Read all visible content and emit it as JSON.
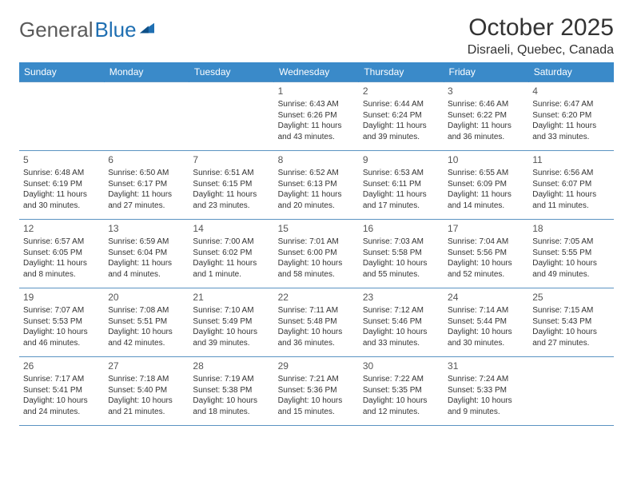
{
  "logo": {
    "part1": "General",
    "part2": "Blue"
  },
  "title": "October 2025",
  "location": "Disraeli, Quebec, Canada",
  "colors": {
    "header_bg": "#3a8ac9",
    "header_text": "#ffffff",
    "row_border": "#5b93c2",
    "text": "#333333",
    "logo_gray": "#5a5a5a",
    "logo_blue": "#1f6fb2",
    "page_bg": "#ffffff"
  },
  "typography": {
    "title_fontsize": 30,
    "location_fontsize": 16,
    "header_fontsize": 12,
    "cell_fontsize": 10,
    "daynum_fontsize": 12
  },
  "weekdays": [
    "Sunday",
    "Monday",
    "Tuesday",
    "Wednesday",
    "Thursday",
    "Friday",
    "Saturday"
  ],
  "layout": {
    "columns": 7,
    "rows": 5,
    "col_width_pct": 14.2857
  },
  "weeks": [
    [
      null,
      null,
      null,
      {
        "day": "1",
        "sunrise": "Sunrise: 6:43 AM",
        "sunset": "Sunset: 6:26 PM",
        "dl1": "Daylight: 11 hours",
        "dl2": "and 43 minutes."
      },
      {
        "day": "2",
        "sunrise": "Sunrise: 6:44 AM",
        "sunset": "Sunset: 6:24 PM",
        "dl1": "Daylight: 11 hours",
        "dl2": "and 39 minutes."
      },
      {
        "day": "3",
        "sunrise": "Sunrise: 6:46 AM",
        "sunset": "Sunset: 6:22 PM",
        "dl1": "Daylight: 11 hours",
        "dl2": "and 36 minutes."
      },
      {
        "day": "4",
        "sunrise": "Sunrise: 6:47 AM",
        "sunset": "Sunset: 6:20 PM",
        "dl1": "Daylight: 11 hours",
        "dl2": "and 33 minutes."
      }
    ],
    [
      {
        "day": "5",
        "sunrise": "Sunrise: 6:48 AM",
        "sunset": "Sunset: 6:19 PM",
        "dl1": "Daylight: 11 hours",
        "dl2": "and 30 minutes."
      },
      {
        "day": "6",
        "sunrise": "Sunrise: 6:50 AM",
        "sunset": "Sunset: 6:17 PM",
        "dl1": "Daylight: 11 hours",
        "dl2": "and 27 minutes."
      },
      {
        "day": "7",
        "sunrise": "Sunrise: 6:51 AM",
        "sunset": "Sunset: 6:15 PM",
        "dl1": "Daylight: 11 hours",
        "dl2": "and 23 minutes."
      },
      {
        "day": "8",
        "sunrise": "Sunrise: 6:52 AM",
        "sunset": "Sunset: 6:13 PM",
        "dl1": "Daylight: 11 hours",
        "dl2": "and 20 minutes."
      },
      {
        "day": "9",
        "sunrise": "Sunrise: 6:53 AM",
        "sunset": "Sunset: 6:11 PM",
        "dl1": "Daylight: 11 hours",
        "dl2": "and 17 minutes."
      },
      {
        "day": "10",
        "sunrise": "Sunrise: 6:55 AM",
        "sunset": "Sunset: 6:09 PM",
        "dl1": "Daylight: 11 hours",
        "dl2": "and 14 minutes."
      },
      {
        "day": "11",
        "sunrise": "Sunrise: 6:56 AM",
        "sunset": "Sunset: 6:07 PM",
        "dl1": "Daylight: 11 hours",
        "dl2": "and 11 minutes."
      }
    ],
    [
      {
        "day": "12",
        "sunrise": "Sunrise: 6:57 AM",
        "sunset": "Sunset: 6:05 PM",
        "dl1": "Daylight: 11 hours",
        "dl2": "and 8 minutes."
      },
      {
        "day": "13",
        "sunrise": "Sunrise: 6:59 AM",
        "sunset": "Sunset: 6:04 PM",
        "dl1": "Daylight: 11 hours",
        "dl2": "and 4 minutes."
      },
      {
        "day": "14",
        "sunrise": "Sunrise: 7:00 AM",
        "sunset": "Sunset: 6:02 PM",
        "dl1": "Daylight: 11 hours",
        "dl2": "and 1 minute."
      },
      {
        "day": "15",
        "sunrise": "Sunrise: 7:01 AM",
        "sunset": "Sunset: 6:00 PM",
        "dl1": "Daylight: 10 hours",
        "dl2": "and 58 minutes."
      },
      {
        "day": "16",
        "sunrise": "Sunrise: 7:03 AM",
        "sunset": "Sunset: 5:58 PM",
        "dl1": "Daylight: 10 hours",
        "dl2": "and 55 minutes."
      },
      {
        "day": "17",
        "sunrise": "Sunrise: 7:04 AM",
        "sunset": "Sunset: 5:56 PM",
        "dl1": "Daylight: 10 hours",
        "dl2": "and 52 minutes."
      },
      {
        "day": "18",
        "sunrise": "Sunrise: 7:05 AM",
        "sunset": "Sunset: 5:55 PM",
        "dl1": "Daylight: 10 hours",
        "dl2": "and 49 minutes."
      }
    ],
    [
      {
        "day": "19",
        "sunrise": "Sunrise: 7:07 AM",
        "sunset": "Sunset: 5:53 PM",
        "dl1": "Daylight: 10 hours",
        "dl2": "and 46 minutes."
      },
      {
        "day": "20",
        "sunrise": "Sunrise: 7:08 AM",
        "sunset": "Sunset: 5:51 PM",
        "dl1": "Daylight: 10 hours",
        "dl2": "and 42 minutes."
      },
      {
        "day": "21",
        "sunrise": "Sunrise: 7:10 AM",
        "sunset": "Sunset: 5:49 PM",
        "dl1": "Daylight: 10 hours",
        "dl2": "and 39 minutes."
      },
      {
        "day": "22",
        "sunrise": "Sunrise: 7:11 AM",
        "sunset": "Sunset: 5:48 PM",
        "dl1": "Daylight: 10 hours",
        "dl2": "and 36 minutes."
      },
      {
        "day": "23",
        "sunrise": "Sunrise: 7:12 AM",
        "sunset": "Sunset: 5:46 PM",
        "dl1": "Daylight: 10 hours",
        "dl2": "and 33 minutes."
      },
      {
        "day": "24",
        "sunrise": "Sunrise: 7:14 AM",
        "sunset": "Sunset: 5:44 PM",
        "dl1": "Daylight: 10 hours",
        "dl2": "and 30 minutes."
      },
      {
        "day": "25",
        "sunrise": "Sunrise: 7:15 AM",
        "sunset": "Sunset: 5:43 PM",
        "dl1": "Daylight: 10 hours",
        "dl2": "and 27 minutes."
      }
    ],
    [
      {
        "day": "26",
        "sunrise": "Sunrise: 7:17 AM",
        "sunset": "Sunset: 5:41 PM",
        "dl1": "Daylight: 10 hours",
        "dl2": "and 24 minutes."
      },
      {
        "day": "27",
        "sunrise": "Sunrise: 7:18 AM",
        "sunset": "Sunset: 5:40 PM",
        "dl1": "Daylight: 10 hours",
        "dl2": "and 21 minutes."
      },
      {
        "day": "28",
        "sunrise": "Sunrise: 7:19 AM",
        "sunset": "Sunset: 5:38 PM",
        "dl1": "Daylight: 10 hours",
        "dl2": "and 18 minutes."
      },
      {
        "day": "29",
        "sunrise": "Sunrise: 7:21 AM",
        "sunset": "Sunset: 5:36 PM",
        "dl1": "Daylight: 10 hours",
        "dl2": "and 15 minutes."
      },
      {
        "day": "30",
        "sunrise": "Sunrise: 7:22 AM",
        "sunset": "Sunset: 5:35 PM",
        "dl1": "Daylight: 10 hours",
        "dl2": "and 12 minutes."
      },
      {
        "day": "31",
        "sunrise": "Sunrise: 7:24 AM",
        "sunset": "Sunset: 5:33 PM",
        "dl1": "Daylight: 10 hours",
        "dl2": "and 9 minutes."
      },
      null
    ]
  ]
}
